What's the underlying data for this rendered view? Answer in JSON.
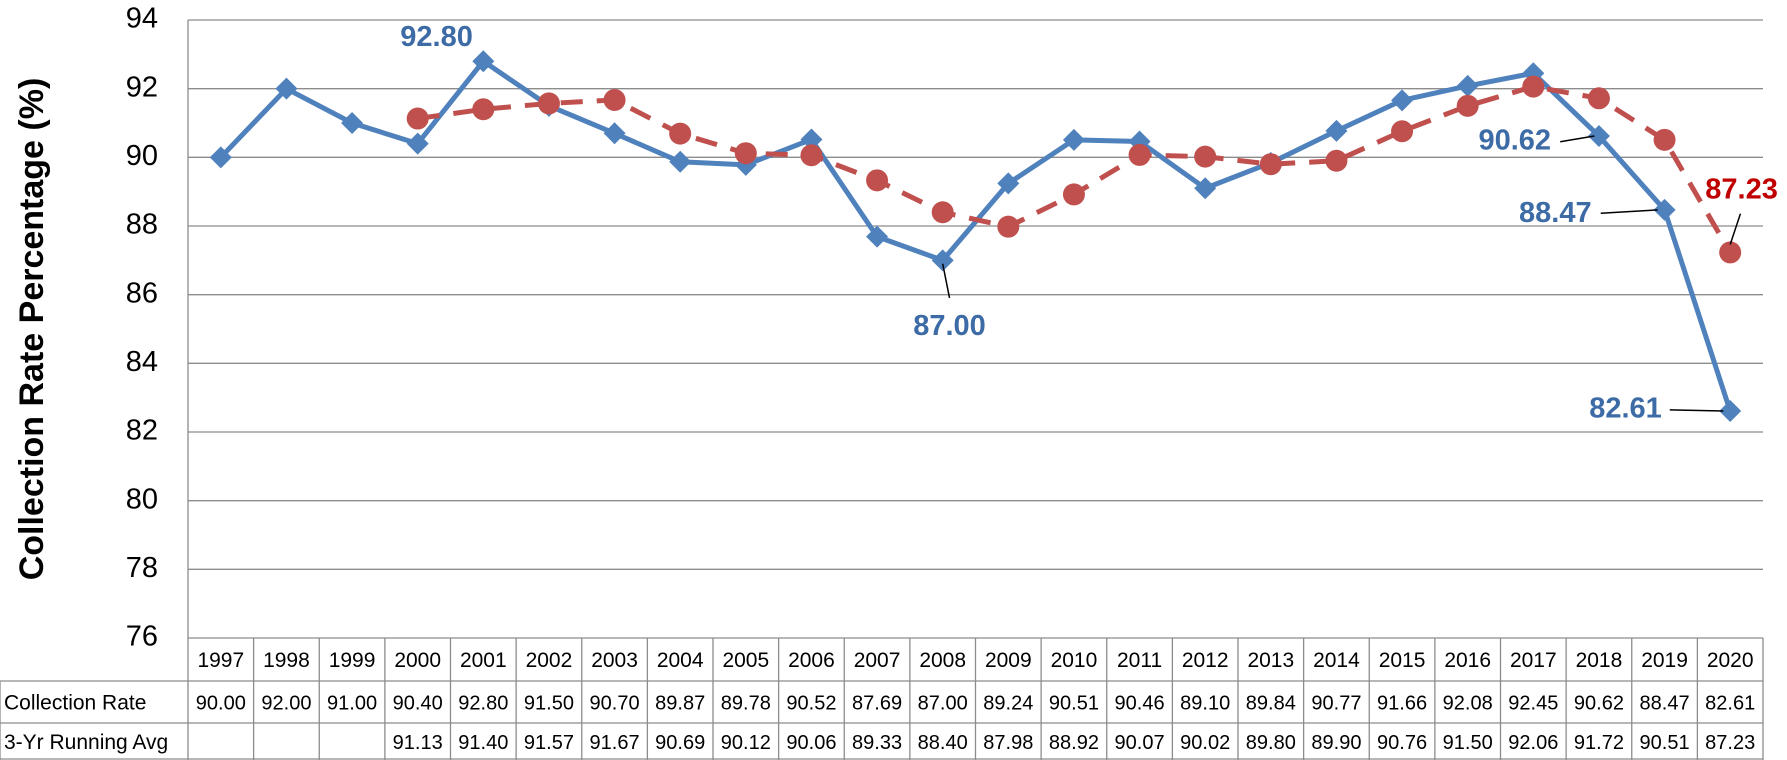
{
  "chart_data": {
    "type": "line",
    "y_label": "Collection Rate Percentage (%)",
    "categories": [
      "1997",
      "1998",
      "1999",
      "2000",
      "2001",
      "2002",
      "2003",
      "2004",
      "2005",
      "2006",
      "2007",
      "2008",
      "2009",
      "2010",
      "2011",
      "2012",
      "2013",
      "2014",
      "2015",
      "2016",
      "2017",
      "2018",
      "2019",
      "2020"
    ],
    "series": [
      {
        "name": "Collection Rate",
        "color": "#4f81bd",
        "label_color": "#3d6ba6",
        "marker": "diamond",
        "dashed": false,
        "values": [
          90,
          92,
          91,
          90.4,
          92.8,
          91.5,
          90.7,
          89.87,
          89.78,
          90.52,
          87.69,
          87,
          89.24,
          90.51,
          90.46,
          89.1,
          89.84,
          90.77,
          91.66,
          92.08,
          92.45,
          90.62,
          88.47,
          82.61
        ],
        "value_labels": [
          "90.00",
          "92.00",
          "91.00",
          "90.40",
          "92.80",
          "91.50",
          "90.70",
          "89.87",
          "89.78",
          "90.52",
          "87.69",
          "87.00",
          "89.24",
          "90.51",
          "90.46",
          "89.10",
          "89.84",
          "90.77",
          "91.66",
          "92.08",
          "92.45",
          "90.62",
          "88.47",
          "82.61"
        ],
        "labeled_points": [
          4,
          11,
          21,
          22,
          23
        ]
      },
      {
        "name": "3-Yr Running Avg",
        "color": "#c0504d",
        "label_color": "#c00000",
        "marker": "circle",
        "dashed": true,
        "values": [
          null,
          null,
          null,
          91.13,
          91.4,
          91.57,
          91.67,
          90.69,
          90.12,
          90.06,
          89.33,
          88.4,
          87.98,
          88.92,
          90.07,
          90.02,
          89.8,
          89.9,
          90.76,
          91.5,
          92.06,
          91.72,
          90.51,
          87.23
        ],
        "value_labels": [
          null,
          null,
          null,
          "91.13",
          "91.40",
          "91.57",
          "91.67",
          "90.69",
          "90.12",
          "90.06",
          "89.33",
          "88.40",
          "87.98",
          "88.92",
          "90.07",
          "90.02",
          "89.80",
          "89.90",
          "90.76",
          "91.50",
          "92.06",
          "91.72",
          "90.51",
          "87.23"
        ],
        "labeled_points": [
          23
        ]
      }
    ],
    "ylim": [
      76,
      94
    ],
    "yticks": [
      76,
      78,
      80,
      82,
      84,
      86,
      88,
      90,
      92,
      94
    ],
    "grid": true
  }
}
